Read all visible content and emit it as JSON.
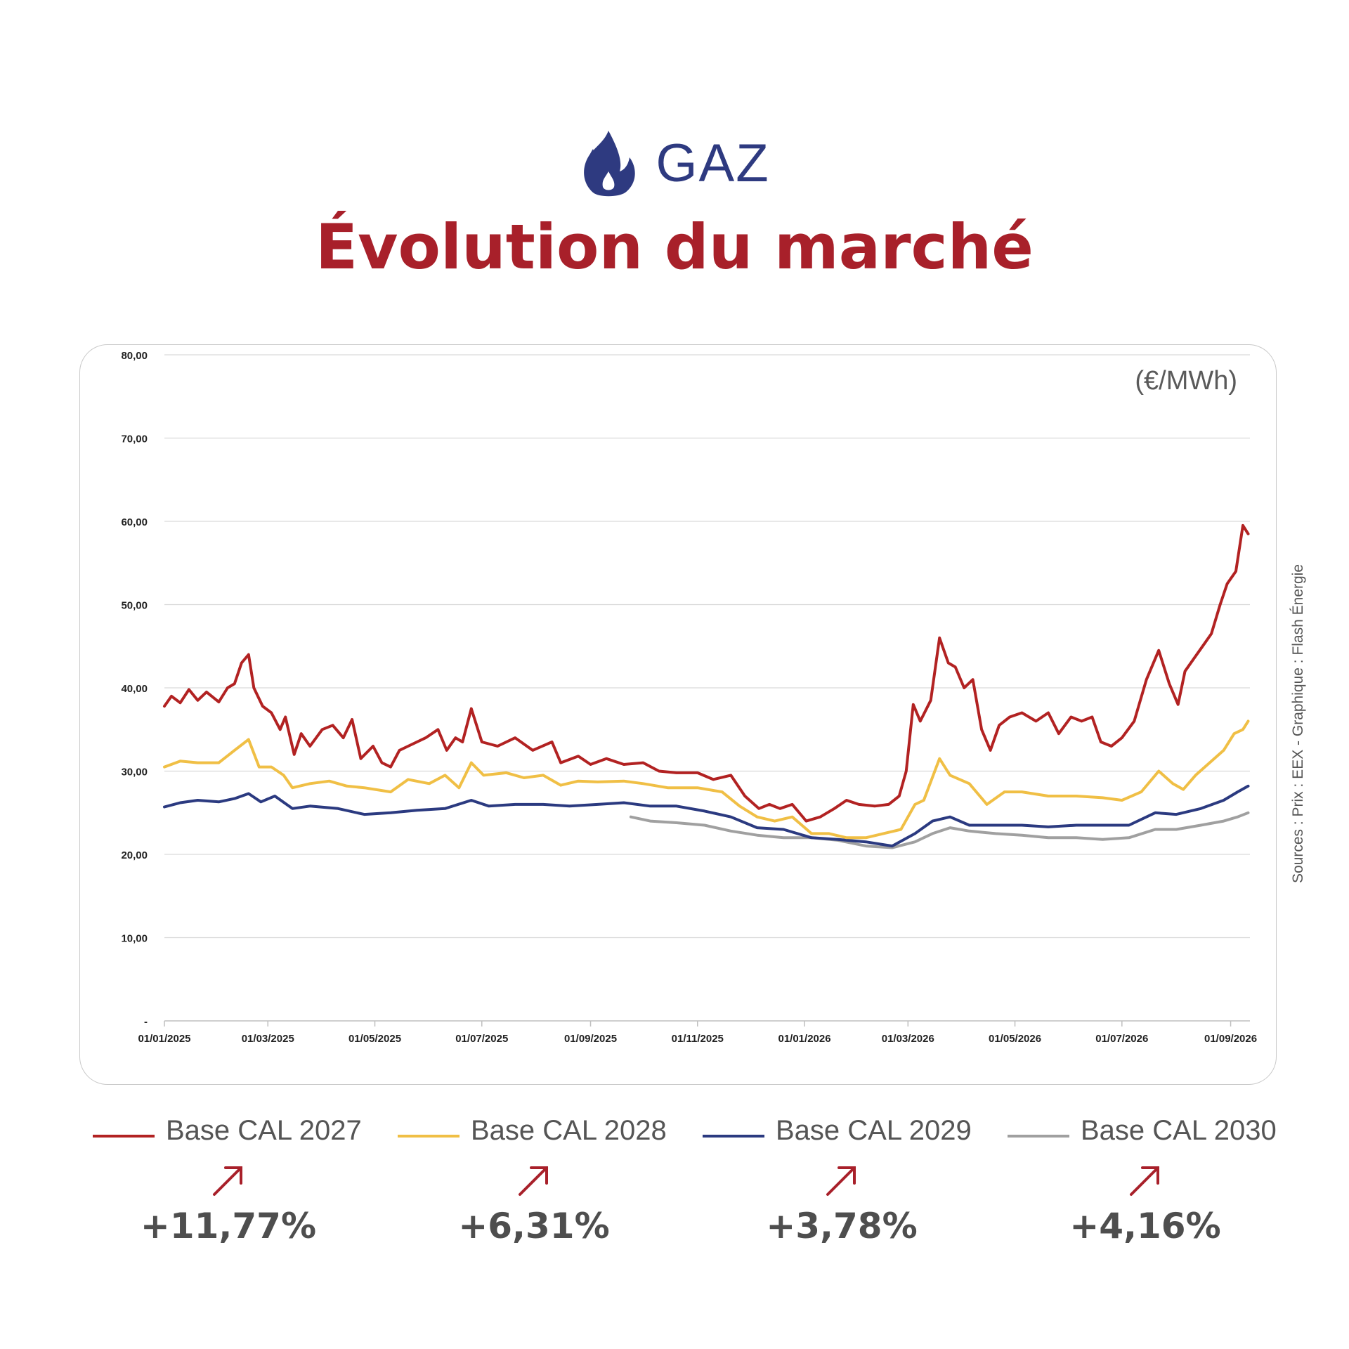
{
  "header": {
    "category": "GAZ",
    "title": "Évolution du marché",
    "icon": "flame-icon"
  },
  "colors": {
    "title": "#a8202a",
    "category": "#2e3a80"
  },
  "chart_data": {
    "type": "line",
    "unit": "(€/MWh)",
    "source": "Sources : Prix : EEX - Graphique : Flash Énergie",
    "xlabel": "",
    "ylabel": "",
    "ylim": [
      0,
      80
    ],
    "yticks": [
      0,
      10,
      20,
      30,
      40,
      50,
      60,
      70,
      80
    ],
    "ytick_labels": [
      "-",
      "10,00",
      "20,00",
      "30,00",
      "40,00",
      "50,00",
      "60,00",
      "70,00",
      "80,00"
    ],
    "xlim": [
      "2025-01-01",
      "2026-09-12"
    ],
    "xticks": [
      "2025-01-01",
      "2025-03-01",
      "2025-05-01",
      "2025-07-01",
      "2025-09-01",
      "2025-11-01",
      "2026-01-01",
      "2026-03-01",
      "2026-05-01",
      "2026-07-01",
      "2026-09-01"
    ],
    "xtick_labels": [
      "01/01/2025",
      "01/03/2025",
      "01/05/2025",
      "01/07/2025",
      "01/09/2025",
      "01/11/2025",
      "01/01/2026",
      "01/03/2026",
      "01/05/2026",
      "01/07/2026",
      "01/09/2026"
    ],
    "grid": true,
    "legend_position": "bottom",
    "series": [
      {
        "name": "Base CAL 2027",
        "color": "#b22222",
        "change": "+11,77%",
        "points": [
          [
            "2025-01-01",
            37.8
          ],
          [
            "2025-01-05",
            39.0
          ],
          [
            "2025-01-10",
            38.2
          ],
          [
            "2025-01-15",
            39.8
          ],
          [
            "2025-01-20",
            38.5
          ],
          [
            "2025-01-25",
            39.5
          ],
          [
            "2025-02-01",
            38.3
          ],
          [
            "2025-02-06",
            40.0
          ],
          [
            "2025-02-10",
            40.5
          ],
          [
            "2025-02-14",
            43.0
          ],
          [
            "2025-02-18",
            44.0
          ],
          [
            "2025-02-21",
            40.0
          ],
          [
            "2025-02-26",
            37.8
          ],
          [
            "2025-03-03",
            37.0
          ],
          [
            "2025-03-08",
            35.0
          ],
          [
            "2025-03-11",
            36.5
          ],
          [
            "2025-03-16",
            32.0
          ],
          [
            "2025-03-20",
            34.5
          ],
          [
            "2025-03-25",
            33.0
          ],
          [
            "2025-04-01",
            35.0
          ],
          [
            "2025-04-07",
            35.5
          ],
          [
            "2025-04-13",
            34.0
          ],
          [
            "2025-04-18",
            36.2
          ],
          [
            "2025-04-23",
            31.5
          ],
          [
            "2025-04-30",
            33.0
          ],
          [
            "2025-05-05",
            31.0
          ],
          [
            "2025-05-10",
            30.5
          ],
          [
            "2025-05-15",
            32.5
          ],
          [
            "2025-05-20",
            33.0
          ],
          [
            "2025-05-30",
            34.0
          ],
          [
            "2025-06-06",
            35.0
          ],
          [
            "2025-06-11",
            32.5
          ],
          [
            "2025-06-16",
            34.0
          ],
          [
            "2025-06-20",
            33.5
          ],
          [
            "2025-06-25",
            37.5
          ],
          [
            "2025-07-01",
            33.5
          ],
          [
            "2025-07-10",
            33.0
          ],
          [
            "2025-07-20",
            34.0
          ],
          [
            "2025-07-30",
            32.5
          ],
          [
            "2025-08-10",
            33.5
          ],
          [
            "2025-08-15",
            31.0
          ],
          [
            "2025-08-25",
            31.8
          ],
          [
            "2025-09-01",
            30.8
          ],
          [
            "2025-09-10",
            31.5
          ],
          [
            "2025-09-20",
            30.8
          ],
          [
            "2025-10-01",
            31.0
          ],
          [
            "2025-10-10",
            30.0
          ],
          [
            "2025-10-20",
            29.8
          ],
          [
            "2025-11-01",
            29.8
          ],
          [
            "2025-11-10",
            29.0
          ],
          [
            "2025-11-20",
            29.5
          ],
          [
            "2025-11-28",
            27.0
          ],
          [
            "2025-12-06",
            25.5
          ],
          [
            "2025-12-12",
            26.0
          ],
          [
            "2025-12-18",
            25.5
          ],
          [
            "2025-12-25",
            26.0
          ],
          [
            "2026-01-02",
            24.0
          ],
          [
            "2026-01-10",
            24.5
          ],
          [
            "2026-01-18",
            25.5
          ],
          [
            "2026-01-25",
            26.5
          ],
          [
            "2026-02-01",
            26.0
          ],
          [
            "2026-02-10",
            25.8
          ],
          [
            "2026-02-18",
            26.0
          ],
          [
            "2026-02-24",
            27.0
          ],
          [
            "2026-02-28",
            30.0
          ],
          [
            "2026-03-04",
            38.0
          ],
          [
            "2026-03-08",
            36.0
          ],
          [
            "2026-03-14",
            38.5
          ],
          [
            "2026-03-19",
            46.0
          ],
          [
            "2026-03-24",
            43.0
          ],
          [
            "2026-03-28",
            42.5
          ],
          [
            "2026-04-02",
            40.0
          ],
          [
            "2026-04-07",
            41.0
          ],
          [
            "2026-04-12",
            35.0
          ],
          [
            "2026-04-17",
            32.5
          ],
          [
            "2026-04-22",
            35.5
          ],
          [
            "2026-04-28",
            36.5
          ],
          [
            "2026-05-05",
            37.0
          ],
          [
            "2026-05-13",
            36.0
          ],
          [
            "2026-05-20",
            37.0
          ],
          [
            "2026-05-26",
            34.5
          ],
          [
            "2026-06-02",
            36.5
          ],
          [
            "2026-06-08",
            36.0
          ],
          [
            "2026-06-14",
            36.5
          ],
          [
            "2026-06-19",
            33.5
          ],
          [
            "2026-06-25",
            33.0
          ],
          [
            "2026-07-01",
            34.0
          ],
          [
            "2026-07-08",
            36.0
          ],
          [
            "2026-07-15",
            41.0
          ],
          [
            "2026-07-22",
            44.5
          ],
          [
            "2026-07-28",
            40.5
          ],
          [
            "2026-08-02",
            38.0
          ],
          [
            "2026-08-06",
            42.0
          ],
          [
            "2026-08-11",
            43.5
          ],
          [
            "2026-08-16",
            45.0
          ],
          [
            "2026-08-21",
            46.5
          ],
          [
            "2026-08-26",
            50.0
          ],
          [
            "2026-08-30",
            52.5
          ],
          [
            "2026-09-04",
            54.0
          ],
          [
            "2026-09-08",
            59.5
          ],
          [
            "2026-09-11",
            58.5
          ]
        ]
      },
      {
        "name": "Base CAL 2028",
        "color": "#f0bf45",
        "change": "+6,31%",
        "points": [
          [
            "2025-01-01",
            30.5
          ],
          [
            "2025-01-10",
            31.2
          ],
          [
            "2025-01-20",
            31.0
          ],
          [
            "2025-02-01",
            31.0
          ],
          [
            "2025-02-10",
            32.5
          ],
          [
            "2025-02-18",
            33.8
          ],
          [
            "2025-02-24",
            30.5
          ],
          [
            "2025-03-03",
            30.5
          ],
          [
            "2025-03-10",
            29.5
          ],
          [
            "2025-03-15",
            28.0
          ],
          [
            "2025-03-25",
            28.5
          ],
          [
            "2025-04-05",
            28.8
          ],
          [
            "2025-04-15",
            28.2
          ],
          [
            "2025-04-25",
            28.0
          ],
          [
            "2025-05-10",
            27.5
          ],
          [
            "2025-05-20",
            29.0
          ],
          [
            "2025-06-01",
            28.5
          ],
          [
            "2025-06-10",
            29.5
          ],
          [
            "2025-06-18",
            28.0
          ],
          [
            "2025-06-25",
            31.0
          ],
          [
            "2025-07-02",
            29.5
          ],
          [
            "2025-07-15",
            29.8
          ],
          [
            "2025-07-25",
            29.2
          ],
          [
            "2025-08-05",
            29.5
          ],
          [
            "2025-08-15",
            28.3
          ],
          [
            "2025-08-25",
            28.8
          ],
          [
            "2025-09-05",
            28.7
          ],
          [
            "2025-09-20",
            28.8
          ],
          [
            "2025-10-01",
            28.5
          ],
          [
            "2025-10-15",
            28.0
          ],
          [
            "2025-11-01",
            28.0
          ],
          [
            "2025-11-15",
            27.5
          ],
          [
            "2025-11-25",
            25.8
          ],
          [
            "2025-12-05",
            24.5
          ],
          [
            "2025-12-15",
            24.0
          ],
          [
            "2025-12-25",
            24.5
          ],
          [
            "2026-01-05",
            22.5
          ],
          [
            "2026-01-15",
            22.5
          ],
          [
            "2026-01-25",
            22.0
          ],
          [
            "2026-02-05",
            22.0
          ],
          [
            "2026-02-15",
            22.5
          ],
          [
            "2026-02-25",
            23.0
          ],
          [
            "2026-03-05",
            26.0
          ],
          [
            "2026-03-10",
            26.5
          ],
          [
            "2026-03-19",
            31.5
          ],
          [
            "2026-03-25",
            29.5
          ],
          [
            "2026-04-05",
            28.5
          ],
          [
            "2026-04-15",
            26.0
          ],
          [
            "2026-04-25",
            27.5
          ],
          [
            "2026-05-05",
            27.5
          ],
          [
            "2026-05-20",
            27.0
          ],
          [
            "2026-06-05",
            27.0
          ],
          [
            "2026-06-20",
            26.8
          ],
          [
            "2026-07-01",
            26.5
          ],
          [
            "2026-07-12",
            27.5
          ],
          [
            "2026-07-22",
            30.0
          ],
          [
            "2026-07-30",
            28.5
          ],
          [
            "2026-08-05",
            27.8
          ],
          [
            "2026-08-12",
            29.5
          ],
          [
            "2026-08-20",
            31.0
          ],
          [
            "2026-08-28",
            32.5
          ],
          [
            "2026-09-03",
            34.5
          ],
          [
            "2026-09-08",
            35.0
          ],
          [
            "2026-09-11",
            36.0
          ]
        ]
      },
      {
        "name": "Base CAL 2029",
        "color": "#2b3a80",
        "change": "+3,78%",
        "points": [
          [
            "2025-01-01",
            25.7
          ],
          [
            "2025-01-10",
            26.2
          ],
          [
            "2025-01-20",
            26.5
          ],
          [
            "2025-02-01",
            26.3
          ],
          [
            "2025-02-10",
            26.7
          ],
          [
            "2025-02-18",
            27.3
          ],
          [
            "2025-02-25",
            26.3
          ],
          [
            "2025-03-05",
            27.0
          ],
          [
            "2025-03-15",
            25.5
          ],
          [
            "2025-03-25",
            25.8
          ],
          [
            "2025-04-10",
            25.5
          ],
          [
            "2025-04-25",
            24.8
          ],
          [
            "2025-05-10",
            25.0
          ],
          [
            "2025-05-25",
            25.3
          ],
          [
            "2025-06-10",
            25.5
          ],
          [
            "2025-06-25",
            26.5
          ],
          [
            "2025-07-05",
            25.8
          ],
          [
            "2025-07-20",
            26.0
          ],
          [
            "2025-08-05",
            26.0
          ],
          [
            "2025-08-20",
            25.8
          ],
          [
            "2025-09-05",
            26.0
          ],
          [
            "2025-09-20",
            26.2
          ],
          [
            "2025-10-05",
            25.8
          ],
          [
            "2025-10-20",
            25.8
          ],
          [
            "2025-11-05",
            25.2
          ],
          [
            "2025-11-20",
            24.5
          ],
          [
            "2025-12-05",
            23.2
          ],
          [
            "2025-12-20",
            23.0
          ],
          [
            "2026-01-05",
            22.0
          ],
          [
            "2026-01-20",
            21.8
          ],
          [
            "2026-02-05",
            21.5
          ],
          [
            "2026-02-20",
            21.0
          ],
          [
            "2026-03-05",
            22.5
          ],
          [
            "2026-03-15",
            24.0
          ],
          [
            "2026-03-25",
            24.5
          ],
          [
            "2026-04-05",
            23.5
          ],
          [
            "2026-04-20",
            23.5
          ],
          [
            "2026-05-05",
            23.5
          ],
          [
            "2026-05-20",
            23.3
          ],
          [
            "2026-06-05",
            23.5
          ],
          [
            "2026-06-20",
            23.5
          ],
          [
            "2026-07-05",
            23.5
          ],
          [
            "2026-07-20",
            25.0
          ],
          [
            "2026-08-01",
            24.8
          ],
          [
            "2026-08-15",
            25.5
          ],
          [
            "2026-08-28",
            26.5
          ],
          [
            "2026-09-05",
            27.5
          ],
          [
            "2026-09-11",
            28.2
          ]
        ]
      },
      {
        "name": "Base CAL 2030",
        "color": "#a0a0a0",
        "change": "+4,16%",
        "points": [
          [
            "2025-09-24",
            24.5
          ],
          [
            "2025-10-05",
            24.0
          ],
          [
            "2025-10-20",
            23.8
          ],
          [
            "2025-11-05",
            23.5
          ],
          [
            "2025-11-20",
            22.8
          ],
          [
            "2025-12-05",
            22.3
          ],
          [
            "2025-12-20",
            22.0
          ],
          [
            "2026-01-05",
            22.0
          ],
          [
            "2026-01-20",
            21.7
          ],
          [
            "2026-02-05",
            21.0
          ],
          [
            "2026-02-20",
            20.8
          ],
          [
            "2026-03-05",
            21.5
          ],
          [
            "2026-03-15",
            22.5
          ],
          [
            "2026-03-25",
            23.2
          ],
          [
            "2026-04-05",
            22.8
          ],
          [
            "2026-04-20",
            22.5
          ],
          [
            "2026-05-05",
            22.3
          ],
          [
            "2026-05-20",
            22.0
          ],
          [
            "2026-06-05",
            22.0
          ],
          [
            "2026-06-20",
            21.8
          ],
          [
            "2026-07-05",
            22.0
          ],
          [
            "2026-07-20",
            23.0
          ],
          [
            "2026-08-01",
            23.0
          ],
          [
            "2026-08-15",
            23.5
          ],
          [
            "2026-08-28",
            24.0
          ],
          [
            "2026-09-05",
            24.5
          ],
          [
            "2026-09-11",
            25.0
          ]
        ]
      }
    ]
  }
}
